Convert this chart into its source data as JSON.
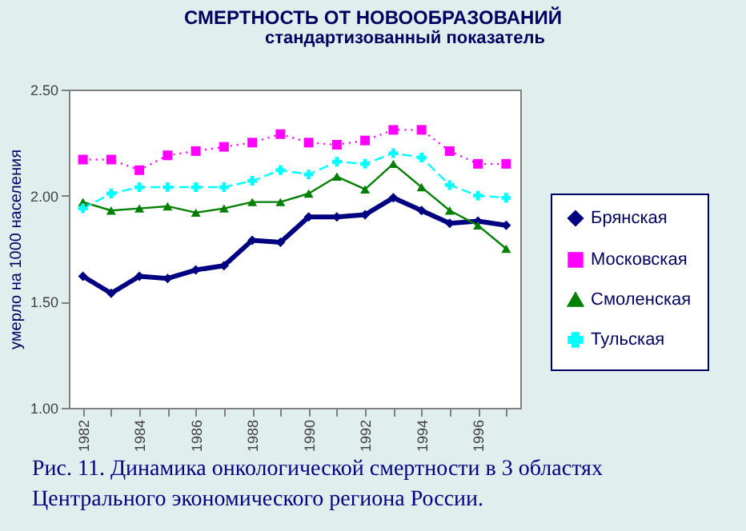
{
  "chart_data": {
    "type": "line",
    "title": "СМЕРТНОСТЬ ОТ НОВООБРАЗОВАНИЙ",
    "subtitle": "стандартизованный показатель",
    "ylabel": "умерло на 1000 населения",
    "x": [
      1982,
      1983,
      1984,
      1985,
      1986,
      1987,
      1988,
      1989,
      1990,
      1991,
      1992,
      1993,
      1994,
      1995,
      1996,
      1997
    ],
    "xlim": [
      1981.5,
      1997.5
    ],
    "xticks": [
      1982,
      {
        "value": 1983,
        "label": null
      },
      1984,
      {
        "value": 1985,
        "label": null
      },
      1986,
      {
        "value": 1987,
        "label": null
      },
      1988,
      {
        "value": 1989,
        "label": null
      },
      1990,
      {
        "value": 1991,
        "label": null
      },
      1992,
      {
        "value": 1993,
        "label": null
      },
      1994,
      {
        "value": 1995,
        "label": null
      },
      1996,
      {
        "value": 1997,
        "label": null
      }
    ],
    "ylim": [
      1.0,
      2.5
    ],
    "yticks": [
      {
        "value": 1.0,
        "label": "1.00"
      },
      {
        "value": 1.5,
        "label": "1.50"
      },
      {
        "value": 2.0,
        "label": "2.00"
      },
      {
        "value": 2.5,
        "label": "2.50"
      }
    ],
    "series": [
      {
        "name": "Брянская",
        "color": "#000080",
        "marker": "diamond",
        "line_style": "solid",
        "values": [
          1.62,
          1.54,
          1.62,
          1.61,
          1.65,
          1.67,
          1.79,
          1.78,
          1.9,
          1.9,
          1.91,
          1.99,
          1.93,
          1.87,
          1.88,
          1.86
        ]
      },
      {
        "name": "Московская",
        "color": "#ff00ff",
        "marker": "square",
        "line_style": "dotted",
        "values": [
          2.17,
          2.17,
          2.12,
          2.19,
          2.21,
          2.23,
          2.25,
          2.29,
          2.25,
          2.24,
          2.26,
          2.31,
          2.31,
          2.21,
          2.15,
          2.15
        ]
      },
      {
        "name": "Смоленская",
        "color": "#008000",
        "marker": "triangle",
        "line_style": "solid",
        "values": [
          1.97,
          1.93,
          1.94,
          1.95,
          1.92,
          1.94,
          1.97,
          1.97,
          2.01,
          2.09,
          2.03,
          2.15,
          2.04,
          1.93,
          1.86,
          1.75
        ]
      },
      {
        "name": "Тульская",
        "color": "#00ffff",
        "marker": "cross",
        "line_style": "dashed",
        "values": [
          1.94,
          2.01,
          2.04,
          2.04,
          2.04,
          2.04,
          2.07,
          2.12,
          2.1,
          2.16,
          2.15,
          2.2,
          2.18,
          2.05,
          2.0,
          1.99
        ]
      }
    ],
    "legend": "right",
    "grid": false,
    "annotations": [
      "Рис. 11. Динамика онкологической смертности в 3 областях Центрального экономического региона России."
    ]
  }
}
